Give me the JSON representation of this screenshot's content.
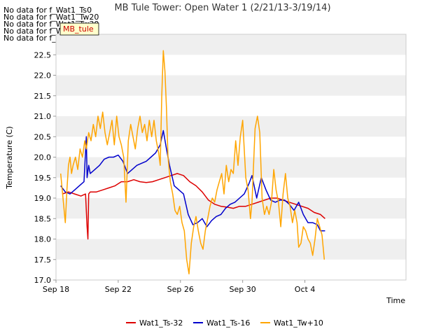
{
  "nodata_messages": [
    "No data for f_Wat1_Ts0",
    "No data for f_Wat1_Tw20",
    "No data for f_Wat1_Tw30",
    "No data for f_Wat1_Tw40",
    "No data for f_Wat1_Tw50"
  ],
  "tooltip_label": "MB_tule",
  "chart_data": {
    "type": "line",
    "title": "MB Tule Tower: Open Water 1 (2/21/13-3/19/14)",
    "xlabel": "Time",
    "ylabel": "Temperature (C)",
    "xlim": [
      0,
      22.5
    ],
    "ylim": [
      17.0,
      23.0
    ],
    "x_ticks": [
      {
        "value": 0,
        "label": "Sep 18"
      },
      {
        "value": 4,
        "label": "Sep 22"
      },
      {
        "value": 8,
        "label": "Sep 26"
      },
      {
        "value": 12,
        "label": "Sep 30"
      },
      {
        "value": 16,
        "label": "Oct 4"
      }
    ],
    "y_ticks": [
      17.0,
      17.5,
      18.0,
      18.5,
      19.0,
      19.5,
      20.0,
      20.5,
      21.0,
      21.5,
      22.0,
      22.5
    ],
    "y_tick_labels": [
      "17.0",
      "17.5",
      "18.0",
      "18.5",
      "19.0",
      "19.5",
      "20.0",
      "20.5",
      "21.0",
      "21.5",
      "22.0",
      "22.5"
    ],
    "grid": "horizontal bands",
    "legend_position": "bottom",
    "series": [
      {
        "name": "Wat1_Ts-32",
        "color": "#dd0000",
        "x": [
          0.4,
          0.8,
          1.2,
          1.6,
          1.9,
          2.0,
          2.05,
          2.1,
          2.2,
          2.6,
          3.0,
          3.4,
          3.8,
          4.2,
          4.6,
          5.0,
          5.4,
          5.8,
          6.2,
          6.6,
          7.0,
          7.4,
          7.8,
          8.2,
          8.6,
          9.0,
          9.4,
          9.8,
          10.2,
          10.6,
          11.0,
          11.4,
          11.8,
          12.2,
          12.6,
          13.0,
          13.4,
          13.8,
          14.2,
          14.6,
          15.0,
          15.4,
          15.8,
          16.2,
          16.6,
          17.0,
          17.3
        ],
        "y": [
          19.1,
          19.15,
          19.1,
          19.05,
          19.1,
          18.3,
          18.0,
          19.1,
          19.15,
          19.15,
          19.2,
          19.25,
          19.3,
          19.4,
          19.4,
          19.45,
          19.4,
          19.38,
          19.4,
          19.45,
          19.5,
          19.55,
          19.6,
          19.55,
          19.4,
          19.3,
          19.15,
          18.95,
          18.85,
          18.8,
          18.78,
          18.75,
          18.8,
          18.8,
          18.85,
          18.9,
          18.95,
          19.0,
          19.0,
          18.95,
          18.9,
          18.85,
          18.8,
          18.75,
          18.65,
          18.6,
          18.5
        ]
      },
      {
        "name": "Wat1_Ts-16",
        "color": "#0000cc",
        "x": [
          0.3,
          0.6,
          0.9,
          1.2,
          1.5,
          1.8,
          1.95,
          2.0,
          2.1,
          2.2,
          2.5,
          2.8,
          3.1,
          3.4,
          3.7,
          4.0,
          4.3,
          4.6,
          4.9,
          5.2,
          5.5,
          5.8,
          6.1,
          6.4,
          6.7,
          6.9,
          7.1,
          7.3,
          7.6,
          7.9,
          8.2,
          8.5,
          8.8,
          9.1,
          9.4,
          9.7,
          10.0,
          10.3,
          10.6,
          10.9,
          11.2,
          11.5,
          11.8,
          12.1,
          12.4,
          12.6,
          12.9,
          13.2,
          13.5,
          13.8,
          14.1,
          14.4,
          14.7,
          15.0,
          15.3,
          15.6,
          15.9,
          16.2,
          16.5,
          16.8,
          17.0,
          17.3
        ],
        "y": [
          19.3,
          19.15,
          19.1,
          19.2,
          19.3,
          19.4,
          20.5,
          19.5,
          19.8,
          19.6,
          19.7,
          19.8,
          19.95,
          20.0,
          20.0,
          20.05,
          19.9,
          19.6,
          19.7,
          19.8,
          19.85,
          19.9,
          20.0,
          20.1,
          20.3,
          20.65,
          20.2,
          19.8,
          19.3,
          19.2,
          19.1,
          18.6,
          18.35,
          18.4,
          18.5,
          18.3,
          18.45,
          18.55,
          18.6,
          18.75,
          18.85,
          18.9,
          19.0,
          19.1,
          19.35,
          19.55,
          19.0,
          19.5,
          19.2,
          18.95,
          18.9,
          18.95,
          18.95,
          18.85,
          18.7,
          18.9,
          18.6,
          18.4,
          18.4,
          18.35,
          18.2,
          18.2
        ]
      },
      {
        "name": "Wat1_Tw+10",
        "color": "#ffa500",
        "x": [
          0.3,
          0.45,
          0.6,
          0.7,
          0.8,
          0.9,
          1.0,
          1.1,
          1.25,
          1.4,
          1.55,
          1.7,
          1.85,
          1.95,
          2.1,
          2.25,
          2.4,
          2.55,
          2.7,
          2.85,
          3.0,
          3.15,
          3.3,
          3.45,
          3.6,
          3.75,
          3.9,
          4.05,
          4.2,
          4.35,
          4.5,
          4.65,
          4.8,
          4.95,
          5.1,
          5.25,
          5.4,
          5.55,
          5.7,
          5.85,
          6.0,
          6.15,
          6.3,
          6.45,
          6.6,
          6.7,
          6.8,
          6.9,
          7.0,
          7.1,
          7.2,
          7.35,
          7.5,
          7.65,
          7.8,
          7.95,
          8.1,
          8.25,
          8.4,
          8.55,
          8.7,
          8.85,
          9.0,
          9.15,
          9.3,
          9.45,
          9.6,
          9.75,
          9.9,
          10.05,
          10.2,
          10.35,
          10.5,
          10.65,
          10.8,
          10.95,
          11.1,
          11.25,
          11.4,
          11.55,
          11.7,
          11.85,
          12.0,
          12.1,
          12.2,
          12.35,
          12.5,
          12.6,
          12.7,
          12.8,
          12.95,
          13.1,
          13.25,
          13.4,
          13.55,
          13.7,
          13.85,
          14.0,
          14.15,
          14.3,
          14.45,
          14.6,
          14.75,
          14.9,
          15.05,
          15.2,
          15.35,
          15.5,
          15.6,
          15.75,
          15.9,
          16.05,
          16.2,
          16.35,
          16.5,
          16.65,
          16.8,
          16.95,
          17.1,
          17.25
        ],
        "y": [
          19.6,
          19.0,
          18.4,
          19.2,
          19.8,
          20.0,
          19.6,
          19.8,
          20.0,
          19.7,
          20.2,
          20.0,
          20.4,
          20.2,
          20.6,
          20.4,
          20.8,
          20.5,
          21.0,
          20.7,
          21.1,
          20.6,
          20.3,
          20.6,
          20.9,
          20.3,
          21.0,
          20.5,
          20.3,
          20.0,
          18.9,
          20.4,
          20.8,
          20.5,
          20.2,
          20.7,
          21.0,
          20.6,
          20.8,
          20.4,
          20.9,
          20.5,
          20.9,
          20.4,
          20.1,
          19.8,
          21.5,
          22.6,
          22.1,
          21.2,
          20.0,
          19.4,
          19.1,
          18.7,
          18.6,
          18.8,
          18.4,
          18.2,
          17.5,
          17.15,
          17.9,
          18.3,
          18.55,
          18.2,
          17.9,
          17.75,
          18.2,
          18.5,
          18.8,
          19.0,
          18.9,
          19.2,
          19.4,
          19.6,
          19.1,
          19.8,
          19.4,
          19.7,
          19.6,
          20.4,
          19.8,
          20.5,
          20.9,
          20.2,
          19.5,
          19.2,
          18.5,
          18.9,
          19.8,
          20.7,
          21.0,
          20.6,
          19.0,
          18.6,
          18.8,
          18.6,
          18.9,
          19.7,
          19.2,
          18.9,
          18.3,
          19.1,
          19.6,
          19.0,
          18.8,
          18.4,
          18.7,
          18.4,
          17.8,
          17.9,
          18.3,
          18.2,
          18.0,
          17.9,
          17.6,
          18.0,
          18.5,
          18.3,
          18.1,
          17.5
        ]
      }
    ]
  }
}
